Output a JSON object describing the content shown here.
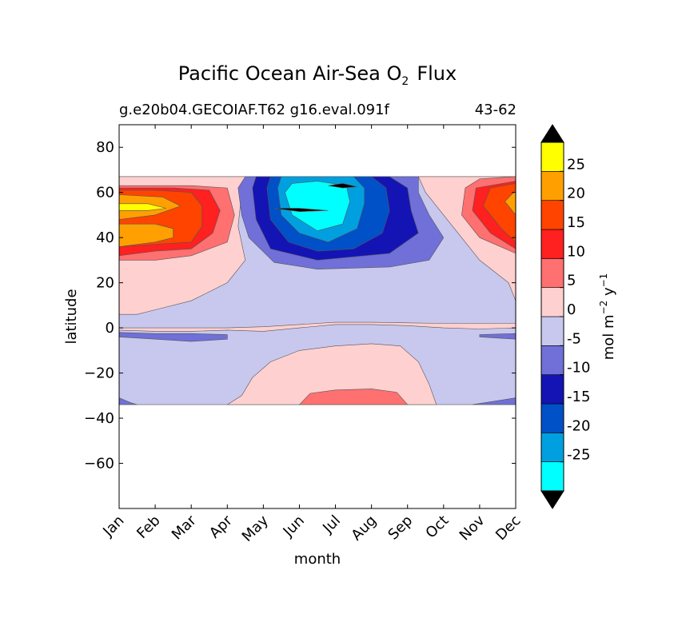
{
  "chart_data": {
    "type": "heatmap",
    "title": {
      "main": "Pacific Ocean Air-Sea O",
      "subscript": "2",
      "tail": "Flux"
    },
    "subtitle_left": "g.e20b04.GECOIAF.T62 g16.eval.091f",
    "subtitle_right": "43-62",
    "xlabel": "month",
    "ylabel": "latitude",
    "x_categories": [
      "Jan",
      "Feb",
      "Mar",
      "Apr",
      "May",
      "Jun",
      "Jul",
      "Aug",
      "Sep",
      "Oct",
      "Nov",
      "Dec"
    ],
    "ylim": [
      -80,
      90
    ],
    "yticks": [
      80,
      60,
      40,
      20,
      0,
      -20,
      -40,
      -60
    ],
    "ytick_labels": [
      "80",
      "60",
      "40",
      "20",
      "0",
      "−20",
      "−40",
      "−60"
    ],
    "data_lat_range": [
      -34,
      67
    ],
    "colorbar": {
      "label": {
        "base": "mol m",
        "exp1": "−2",
        "mid": " y",
        "exp2": "−1"
      },
      "extend": "both",
      "levels": [
        -30,
        -25,
        -20,
        -15,
        -10,
        -5,
        0,
        5,
        10,
        15,
        20,
        25,
        30
      ],
      "tick_values": [
        25,
        20,
        15,
        10,
        5,
        0,
        -5,
        -10,
        -15,
        -20,
        -25
      ],
      "tick_labels": [
        "25",
        "20",
        "15",
        "10",
        "5",
        "0",
        "-5",
        "-10",
        "-15",
        "-20",
        "-25"
      ],
      "colors": [
        "#00ffff",
        "#00a0e0",
        "#0050c8",
        "#1414b4",
        "#7070d8",
        "#c8c8ee",
        "#ffd0d0",
        "#ff7070",
        "#ff2020",
        "#ff4400",
        "#ffa000",
        "#ffff00"
      ],
      "under_color": "#000000",
      "over_color": "#000000"
    },
    "regions": [
      {
        "value": -2.5,
        "points": [
          [
            0,
            -34
          ],
          [
            12,
            -34
          ],
          [
            12,
            67
          ],
          [
            0,
            67
          ]
        ]
      },
      {
        "value": 2.5,
        "points": [
          [
            0,
            -1
          ],
          [
            1,
            -1.5
          ],
          [
            2,
            -1.5
          ],
          [
            3,
            -1
          ],
          [
            4,
            -1.5
          ],
          [
            5,
            0
          ],
          [
            6,
            1.5
          ],
          [
            7,
            1.5
          ],
          [
            8,
            1
          ],
          [
            9,
            0
          ],
          [
            10,
            -0.5
          ],
          [
            11,
            0
          ],
          [
            12,
            0
          ],
          [
            12,
            1
          ],
          [
            11,
            2
          ],
          [
            9,
            2
          ],
          [
            7,
            2.5
          ],
          [
            6,
            2.5
          ],
          [
            5,
            1.5
          ],
          [
            4,
            0.5
          ],
          [
            3,
            0
          ],
          [
            2,
            0
          ],
          [
            1,
            0
          ],
          [
            0,
            0
          ]
        ]
      },
      {
        "value": -7.5,
        "points": [
          [
            0,
            -4
          ],
          [
            1,
            -5
          ],
          [
            2,
            -6
          ],
          [
            3,
            -5
          ],
          [
            3,
            -3
          ],
          [
            2,
            -2.5
          ],
          [
            1,
            -2.5
          ],
          [
            0,
            -2
          ]
        ]
      },
      {
        "value": -7.5,
        "points": [
          [
            10,
            -4
          ],
          [
            11,
            -5
          ],
          [
            12,
            -5
          ],
          [
            12,
            -3
          ],
          [
            11,
            -2.5
          ],
          [
            10,
            -3
          ]
        ]
      },
      {
        "value": -7.5,
        "points": [
          [
            0,
            -34
          ],
          [
            0.5,
            -34
          ],
          [
            0.3,
            -33
          ],
          [
            0,
            -31
          ]
        ]
      },
      {
        "value": -7.5,
        "points": [
          [
            9.8,
            -34
          ],
          [
            12,
            -34
          ],
          [
            12,
            -29
          ],
          [
            11,
            -31
          ]
        ]
      },
      {
        "value": 2.5,
        "points": [
          [
            3,
            -34
          ],
          [
            3.4,
            -30
          ],
          [
            3.7,
            -22
          ],
          [
            4.2,
            -15
          ],
          [
            5,
            -10
          ],
          [
            6,
            -8
          ],
          [
            7,
            -7
          ],
          [
            7.8,
            -8
          ],
          [
            8.3,
            -15
          ],
          [
            8.6,
            -25
          ],
          [
            8.8,
            -34
          ]
        ]
      },
      {
        "value": 7.5,
        "points": [
          [
            5,
            -34
          ],
          [
            5.3,
            -29
          ],
          [
            6,
            -27.5
          ],
          [
            7,
            -27
          ],
          [
            7.7,
            -28.5
          ],
          [
            8,
            -34
          ]
        ]
      },
      {
        "value": 2.5,
        "points": [
          [
            0,
            6
          ],
          [
            0.5,
            6
          ],
          [
            1,
            8
          ],
          [
            2,
            12
          ],
          [
            3,
            20
          ],
          [
            3.5,
            30
          ],
          [
            3.3,
            45
          ],
          [
            3.4,
            60
          ],
          [
            3.5,
            67
          ],
          [
            0,
            67
          ]
        ]
      },
      {
        "value": 2.5,
        "points": [
          [
            12,
            67
          ],
          [
            8.3,
            67
          ],
          [
            8.5,
            60
          ],
          [
            9,
            50
          ],
          [
            9.5,
            40
          ],
          [
            10,
            30
          ],
          [
            10.8,
            20
          ],
          [
            11.4,
            12
          ],
          [
            12,
            10
          ]
        ]
      },
      {
        "value": 7.5,
        "points": [
          [
            0,
            30
          ],
          [
            1,
            30
          ],
          [
            2,
            32
          ],
          [
            3,
            38
          ],
          [
            3.2,
            50
          ],
          [
            3,
            62
          ],
          [
            2,
            63
          ],
          [
            1,
            63
          ],
          [
            0,
            63
          ]
        ]
      },
      {
        "value": 12.5,
        "points": [
          [
            0,
            32
          ],
          [
            1,
            34
          ],
          [
            2,
            35
          ],
          [
            2.6,
            42
          ],
          [
            2.8,
            52
          ],
          [
            2.5,
            61
          ],
          [
            1.5,
            62
          ],
          [
            0,
            62
          ]
        ]
      },
      {
        "value": 17.5,
        "points": [
          [
            0,
            36
          ],
          [
            1,
            37
          ],
          [
            2,
            38
          ],
          [
            2.3,
            45
          ],
          [
            2.3,
            54
          ],
          [
            2,
            60
          ],
          [
            1,
            61
          ],
          [
            0,
            61
          ]
        ]
      },
      {
        "value": 22.5,
        "points": [
          [
            0,
            36
          ],
          [
            1,
            38
          ],
          [
            1.5,
            40
          ],
          [
            1.5,
            44
          ],
          [
            1,
            46
          ],
          [
            0,
            46
          ]
        ]
      },
      {
        "value": 22.5,
        "points": [
          [
            0,
            48
          ],
          [
            1,
            50
          ],
          [
            1.7,
            54
          ],
          [
            1.2,
            58
          ],
          [
            0,
            59
          ]
        ]
      },
      {
        "value": 27.5,
        "points": [
          [
            0,
            52
          ],
          [
            0.8,
            52
          ],
          [
            1.3,
            53
          ],
          [
            0.8,
            55
          ],
          [
            0,
            55
          ]
        ]
      },
      {
        "value": 7.5,
        "points": [
          [
            12,
            30
          ],
          [
            11,
            33
          ],
          [
            10,
            40
          ],
          [
            9.5,
            50
          ],
          [
            9.6,
            62
          ],
          [
            10,
            66
          ],
          [
            11,
            67
          ],
          [
            12,
            67
          ]
        ]
      },
      {
        "value": 12.5,
        "points": [
          [
            12,
            32
          ],
          [
            11.2,
            35
          ],
          [
            10.3,
            42
          ],
          [
            9.8,
            52
          ],
          [
            9.9,
            62
          ],
          [
            11,
            65
          ],
          [
            12,
            66
          ]
        ]
      },
      {
        "value": 17.5,
        "points": [
          [
            12,
            36
          ],
          [
            11.5,
            38
          ],
          [
            10.6,
            44
          ],
          [
            10.1,
            54
          ],
          [
            10.3,
            62
          ],
          [
            11,
            64
          ],
          [
            12,
            65
          ]
        ]
      },
      {
        "value": 22.5,
        "points": [
          [
            12,
            40
          ],
          [
            11.5,
            44
          ],
          [
            11,
            50
          ],
          [
            10.7,
            56
          ],
          [
            11,
            61
          ],
          [
            12,
            62
          ]
        ]
      },
      {
        "value": 27.5,
        "points": [
          [
            12,
            48
          ],
          [
            11.5,
            50
          ],
          [
            11.2,
            56
          ],
          [
            11.5,
            60
          ],
          [
            12,
            61
          ]
        ]
      },
      {
        "value": 32,
        "points": [
          [
            11,
            62
          ],
          [
            12,
            61.5
          ],
          [
            12,
            60.5
          ],
          [
            11.5,
            61
          ]
        ]
      },
      {
        "value": -7.5,
        "points": [
          [
            3.3,
            62
          ],
          [
            3.4,
            50
          ],
          [
            3.6,
            40
          ],
          [
            4.3,
            29
          ],
          [
            5.5,
            26
          ],
          [
            7.5,
            27
          ],
          [
            8.6,
            30
          ],
          [
            9,
            40
          ],
          [
            8.6,
            50
          ],
          [
            8.3,
            60
          ],
          [
            8.3,
            67
          ],
          [
            3.5,
            67
          ]
        ]
      },
      {
        "value": -12.5,
        "points": [
          [
            3.7,
            62
          ],
          [
            3.8,
            48
          ],
          [
            4.2,
            35
          ],
          [
            5.5,
            30
          ],
          [
            7.5,
            33
          ],
          [
            8.3,
            42
          ],
          [
            8.1,
            52
          ],
          [
            8,
            62
          ],
          [
            7.5,
            67
          ],
          [
            3.8,
            67
          ]
        ]
      },
      {
        "value": -17.5,
        "points": [
          [
            4.1,
            62
          ],
          [
            4.2,
            48
          ],
          [
            4.7,
            38
          ],
          [
            5.5,
            34
          ],
          [
            6.5,
            35
          ],
          [
            7.3,
            42
          ],
          [
            7.5,
            52
          ],
          [
            7.4,
            62
          ],
          [
            7,
            67
          ],
          [
            4.2,
            67
          ]
        ]
      },
      {
        "value": -22.5,
        "points": [
          [
            4.4,
            62
          ],
          [
            4.5,
            50
          ],
          [
            5,
            42
          ],
          [
            5.8,
            38
          ],
          [
            6.6,
            44
          ],
          [
            6.8,
            55
          ],
          [
            6.8,
            62
          ],
          [
            6.5,
            67
          ],
          [
            4.5,
            67
          ]
        ]
      },
      {
        "value": -27.5,
        "points": [
          [
            4.6,
            60
          ],
          [
            4.8,
            50
          ],
          [
            5.5,
            43
          ],
          [
            6.2,
            46
          ],
          [
            6.4,
            56
          ],
          [
            6.3,
            63
          ],
          [
            5.5,
            65
          ],
          [
            4.8,
            64
          ]
        ]
      },
      {
        "value": -32,
        "points": [
          [
            4.3,
            53
          ],
          [
            5,
            51.5
          ],
          [
            5.8,
            52
          ],
          [
            5,
            53
          ]
        ]
      },
      {
        "value": -32,
        "points": [
          [
            5.8,
            63
          ],
          [
            6.2,
            62
          ],
          [
            6.6,
            62.5
          ],
          [
            6.2,
            64
          ]
        ]
      }
    ]
  }
}
